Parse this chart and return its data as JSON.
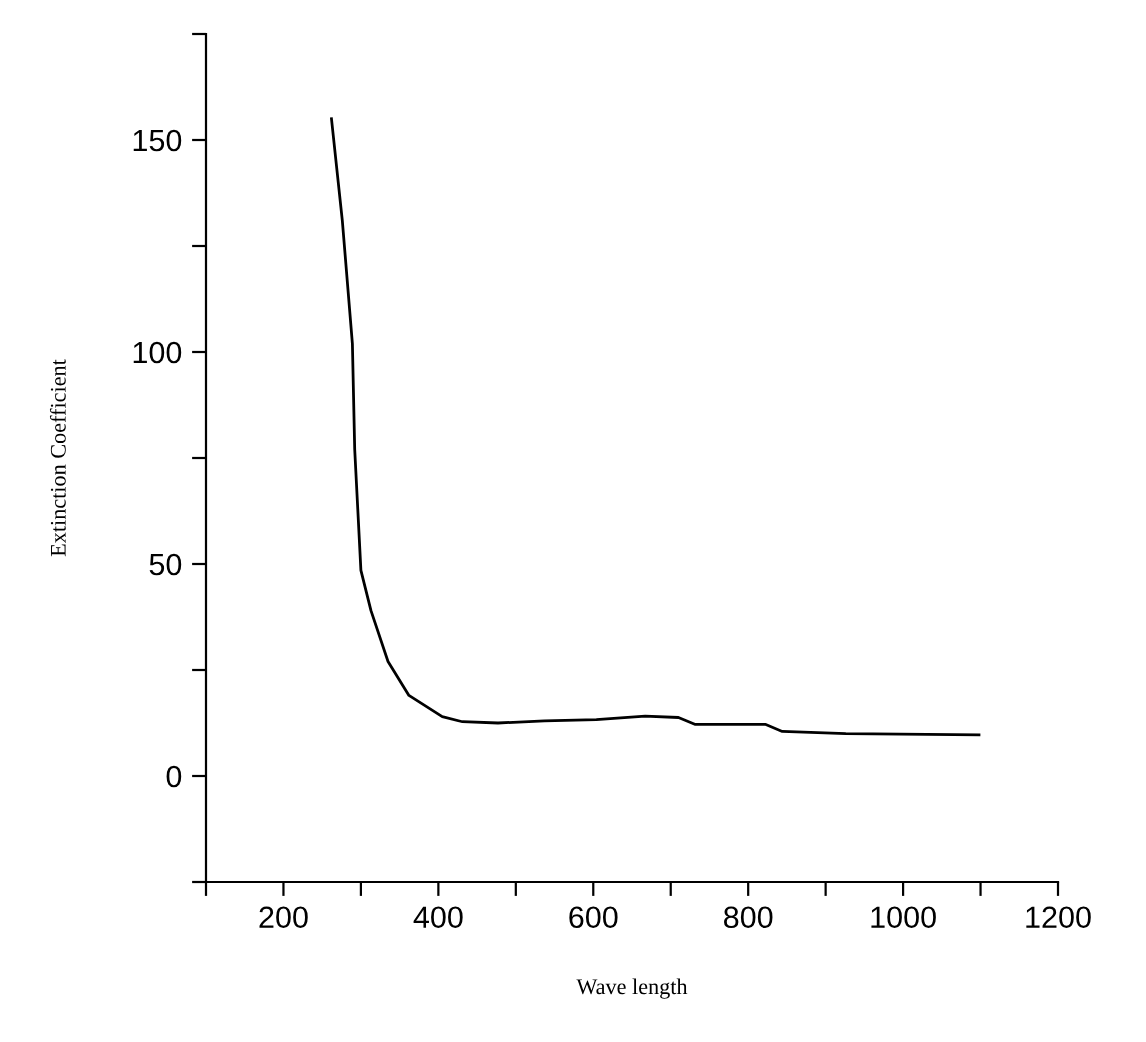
{
  "chart_data": {
    "type": "line",
    "xlabel": "Wave length",
    "ylabel": "Extinction Coefficient",
    "xlim": [
      100,
      1200
    ],
    "ylim": [
      -25,
      175
    ],
    "xticks": [
      {
        "value": 100,
        "label": null
      },
      200,
      {
        "value": 300,
        "label": null
      },
      400,
      {
        "value": 500,
        "label": null
      },
      600,
      {
        "value": 700,
        "label": null
      },
      800,
      {
        "value": 900,
        "label": null
      },
      1000,
      {
        "value": 1100,
        "label": null
      },
      1200
    ],
    "yticks": [
      {
        "value": -25,
        "label": null
      },
      0,
      {
        "value": 25,
        "label": null
      },
      50,
      {
        "value": 75,
        "label": null
      },
      100,
      {
        "value": 125,
        "label": null
      },
      150,
      {
        "value": 175,
        "label": null
      }
    ],
    "series": [
      {
        "color": "#000000",
        "x": [
          262,
          276,
          289,
          292,
          300,
          313,
          335,
          362,
          405,
          431,
          477,
          537,
          604,
          667,
          710,
          731,
          822,
          844,
          926,
          1098
        ],
        "values": [
          155,
          131,
          102,
          77,
          48.5,
          39,
          27,
          19,
          14,
          12.8,
          12.5,
          13,
          13.3,
          14.1,
          13.8,
          12.2,
          12.2,
          10.5,
          10.0,
          9.7
        ]
      }
    ],
    "grid": false,
    "legend": false
  }
}
